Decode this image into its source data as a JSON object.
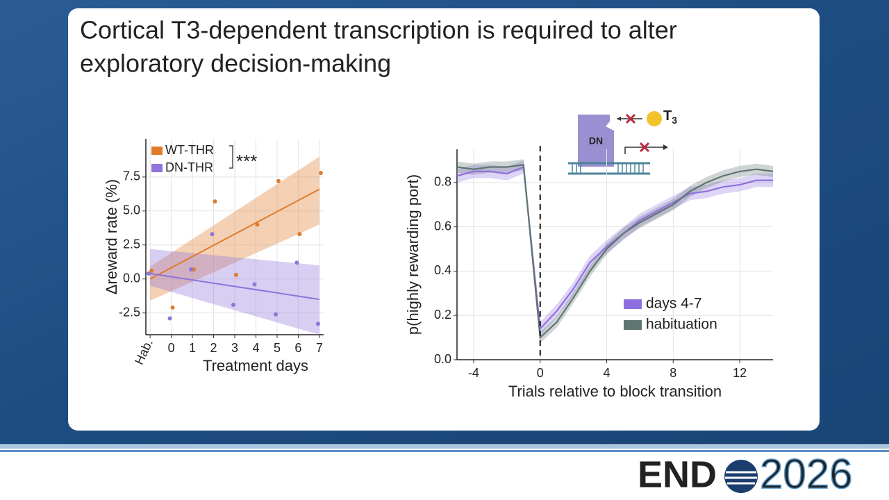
{
  "slide": {
    "title": [
      "Cortical T3-dependent transcription is required to alter",
      "exploratory decision-making"
    ],
    "logo": {
      "name": "END",
      "year": "2026"
    },
    "inset": {
      "protein": "DN",
      "hormone": "T",
      "hormone_sub": "3"
    }
  },
  "chart_data": [
    {
      "type": "scatter",
      "y_label": "Δreward rate (%)",
      "x_label": "Treatment days",
      "xlim": [
        -1.2,
        7.2
      ],
      "ylim": [
        -4.1,
        10.3
      ],
      "xticks": [
        {
          "value": -1,
          "label": "Hab."
        },
        0,
        1,
        2,
        3,
        4,
        5,
        6,
        7
      ],
      "yticks": [
        -2.5,
        {
          "value": 0,
          "label": "0.0"
        },
        2.5,
        {
          "value": 5,
          "label": "5.0"
        },
        7.5
      ],
      "grid": true,
      "legend": "upper left",
      "significance": "***",
      "x": [
        -1,
        0,
        1,
        2,
        3,
        4,
        5,
        6,
        7
      ],
      "series": [
        {
          "name": "WT-THR",
          "color": "#e07b2a",
          "values": [
            0.6,
            -2.1,
            0.7,
            5.7,
            0.3,
            4.0,
            7.2,
            3.3,
            7.8
          ],
          "fit_x": [
            -1,
            7
          ],
          "fit": [
            0.0,
            6.6
          ],
          "band_lower": [
            -1.6,
            4.0
          ],
          "band_upper": [
            0.9,
            9.0
          ]
        },
        {
          "name": "DN-THR",
          "color": "#8e74db",
          "values": [
            0.4,
            -2.9,
            0.7,
            3.3,
            -1.9,
            -0.4,
            -2.6,
            1.2,
            -3.3
          ],
          "fit_x": [
            -1,
            7
          ],
          "fit": [
            0.4,
            -1.5
          ],
          "band_lower": [
            -0.5,
            -4.1
          ],
          "band_upper": [
            2.2,
            1.0
          ]
        }
      ]
    },
    {
      "type": "line",
      "y_label": "p(highly rewarding port)",
      "x_label": "Trials relative to block transition",
      "xlim": [
        -5,
        14
      ],
      "ylim": [
        0,
        0.95
      ],
      "xticks": [
        -4,
        0,
        4,
        8,
        12
      ],
      "yticks": [
        {
          "value": 0,
          "label": "0.0"
        },
        0.2,
        0.4,
        0.6,
        0.8
      ],
      "grid": true,
      "legend": "lower right",
      "vline": 0,
      "x": [
        -5,
        -4,
        -3,
        -2,
        -1,
        0,
        1,
        2,
        3,
        4,
        5,
        6,
        7,
        8,
        9,
        10,
        11,
        12,
        13,
        14
      ],
      "series": [
        {
          "name": "days 4-7",
          "color": "#8f6fe0",
          "values": [
            0.83,
            0.85,
            0.85,
            0.84,
            0.87,
            0.14,
            0.22,
            0.32,
            0.44,
            0.51,
            0.57,
            0.63,
            0.67,
            0.71,
            0.75,
            0.76,
            0.78,
            0.79,
            0.81,
            0.81
          ],
          "errors": [
            0.03,
            0.03,
            0.03,
            0.03,
            0.03,
            0.03,
            0.03,
            0.03,
            0.03,
            0.03,
            0.03,
            0.03,
            0.03,
            0.03,
            0.03,
            0.03,
            0.03,
            0.03,
            0.03,
            0.03
          ]
        },
        {
          "name": "habituation",
          "color": "#5f7572",
          "values": [
            0.87,
            0.86,
            0.87,
            0.87,
            0.88,
            0.1,
            0.17,
            0.28,
            0.4,
            0.5,
            0.57,
            0.62,
            0.66,
            0.7,
            0.76,
            0.8,
            0.83,
            0.85,
            0.86,
            0.85
          ],
          "errors": [
            0.025,
            0.025,
            0.025,
            0.025,
            0.025,
            0.025,
            0.025,
            0.025,
            0.025,
            0.025,
            0.025,
            0.025,
            0.025,
            0.025,
            0.025,
            0.025,
            0.025,
            0.025,
            0.025,
            0.025
          ]
        }
      ]
    }
  ]
}
